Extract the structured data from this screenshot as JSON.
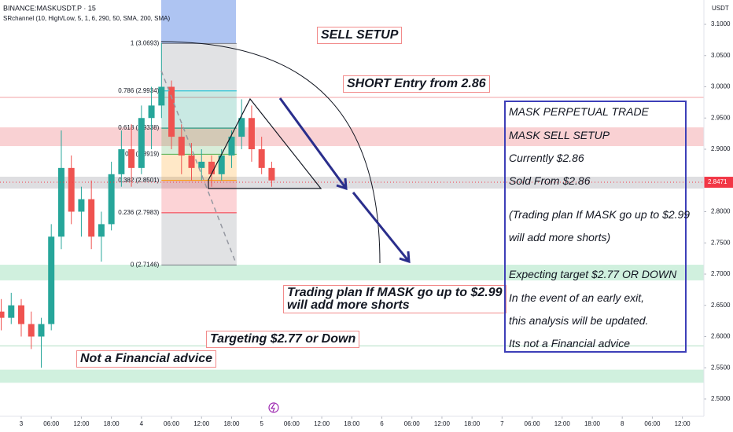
{
  "chart_data": {
    "type": "candlestick",
    "title": "BINANCE:MASKUSDT.P · 15",
    "subtitle": "SRchannel (10, High/Low, 5, 1, 6, 290, 50, SMA, 200, SMA)",
    "y_axis_label": "USDT",
    "up_color": "#26a69a",
    "down_color": "#ef5350",
    "x": [
      -4,
      -2,
      0,
      2,
      4,
      6,
      8,
      10,
      12,
      14,
      16,
      18,
      20,
      22,
      24,
      26,
      28,
      30,
      32,
      34,
      36,
      38,
      40,
      42,
      44,
      46,
      48,
      50
    ],
    "open": [
      2.64,
      2.63,
      2.65,
      2.62,
      2.6,
      2.62,
      2.76,
      2.87,
      2.8,
      2.82,
      2.76,
      2.78,
      2.86,
      2.9,
      2.87,
      2.95,
      2.97,
      3.0,
      2.92,
      2.89,
      2.87,
      2.88,
      2.86,
      2.89,
      2.92,
      2.95,
      2.9,
      2.87
    ],
    "high": [
      2.66,
      2.67,
      2.66,
      2.64,
      2.63,
      2.78,
      2.93,
      2.89,
      2.84,
      2.85,
      2.8,
      2.88,
      2.93,
      2.94,
      2.97,
      3.0,
      3.07,
      3.01,
      2.94,
      2.91,
      2.9,
      2.89,
      2.9,
      2.93,
      2.98,
      2.97,
      2.92,
      2.88
    ],
    "low": [
      2.61,
      2.62,
      2.6,
      2.58,
      2.55,
      2.61,
      2.74,
      2.78,
      2.76,
      2.74,
      2.72,
      2.77,
      2.84,
      2.84,
      2.86,
      2.9,
      2.95,
      2.9,
      2.86,
      2.85,
      2.85,
      2.84,
      2.85,
      2.87,
      2.9,
      2.88,
      2.86,
      2.84
    ],
    "close": [
      2.63,
      2.65,
      2.62,
      2.6,
      2.62,
      2.76,
      2.87,
      2.8,
      2.82,
      2.76,
      2.78,
      2.86,
      2.9,
      2.87,
      2.95,
      2.97,
      3.0,
      2.92,
      2.89,
      2.87,
      2.88,
      2.86,
      2.89,
      2.92,
      2.95,
      2.9,
      2.87,
      2.85
    ],
    "xlim": [
      -4.24,
      136.3
    ],
    "xticks": [
      {
        "value": 0,
        "label": "3"
      },
      {
        "value": 6,
        "label": "06:00"
      },
      {
        "value": 12,
        "label": "12:00"
      },
      {
        "value": 18,
        "label": "18:00"
      },
      {
        "value": 24,
        "label": "4"
      },
      {
        "value": 30,
        "label": "06:00"
      },
      {
        "value": 36,
        "label": "12:00"
      },
      {
        "value": 42,
        "label": "18:00"
      },
      {
        "value": 48,
        "label": "5"
      },
      {
        "value": 54,
        "label": "06:00"
      },
      {
        "value": 60,
        "label": "12:00"
      },
      {
        "value": 66,
        "label": "18:00"
      },
      {
        "value": 72,
        "label": "6"
      },
      {
        "value": 78,
        "label": "06:00"
      },
      {
        "value": 84,
        "label": "12:00"
      },
      {
        "value": 90,
        "label": "18:00"
      },
      {
        "value": 96,
        "label": "7"
      },
      {
        "value": 102,
        "label": "06:00"
      },
      {
        "value": 108,
        "label": "12:00"
      },
      {
        "value": 114,
        "label": "18:00"
      },
      {
        "value": 120,
        "label": "8"
      },
      {
        "value": 126,
        "label": "06:00"
      },
      {
        "value": 132,
        "label": "12:00"
      }
    ],
    "ylim": [
      2.4723,
      3.139
    ],
    "yticks": [
      {
        "value": 2.5,
        "label": "2.5000"
      },
      {
        "value": 2.55,
        "label": "2.5500"
      },
      {
        "value": 2.6,
        "label": "2.6000"
      },
      {
        "value": 2.65,
        "label": "2.6500"
      },
      {
        "value": 2.7,
        "label": "2.7000"
      },
      {
        "value": 2.75,
        "label": "2.7500"
      },
      {
        "value": 2.8,
        "label": "2.8000"
      },
      {
        "value": 2.85,
        "label": "2.8500"
      },
      {
        "value": 2.9,
        "label": "2.9000"
      },
      {
        "value": 2.95,
        "label": "2.9500"
      },
      {
        "value": 3.0,
        "label": "3.0000"
      },
      {
        "value": 3.05,
        "label": "3.0500"
      },
      {
        "value": 3.1,
        "label": "3.1000"
      }
    ],
    "last_price": 2.8471,
    "last_price_color": "#f23645",
    "sr_zones": [
      {
        "low": 2.905,
        "high": 2.935,
        "color": "#f7c5c8"
      },
      {
        "low": 2.837,
        "high": 2.856,
        "color": "#d6d6d9"
      },
      {
        "low": 2.69,
        "high": 2.715,
        "color": "#c4ecd6"
      },
      {
        "low": 2.526,
        "high": 2.547,
        "color": "#c4ecd6"
      }
    ],
    "sr_lines": [
      {
        "value": 2.983,
        "color": "#f5b5b8"
      },
      {
        "value": 2.585,
        "color": "#bfe6cf"
      }
    ],
    "fib_start": 28,
    "fib_end": 43,
    "fib_levels": [
      {
        "value": 3.0693,
        "label": "1 (3.0693)",
        "color": "#787b86"
      },
      {
        "value": 2.9934,
        "label": "0.786 (2.9934)",
        "color": "#00bcd4"
      },
      {
        "value": 2.9338,
        "label": "0.618 (2.9338)",
        "color": "#089981"
      },
      {
        "value": 2.8919,
        "label": "0.5 (2.8919)",
        "color": "#4caf50"
      },
      {
        "value": 2.8501,
        "label": "0.382 (2.8501)",
        "color": "#ff9800"
      },
      {
        "value": 2.7983,
        "label": "0.236 (2.7983)",
        "color": "#f23645"
      },
      {
        "value": 2.7146,
        "label": "0 (2.7146)",
        "color": "#787b86"
      }
    ]
  },
  "annotations": {
    "sell_setup": "SELL SETUP",
    "short_entry": "SHORT Entry from 2.86",
    "trading_plan": [
      "Trading plan If MASK go up to $2.99",
      "will add more shorts"
    ],
    "targeting": "Targeting $2.77 or Down",
    "not_advice": "Not a Financial advice",
    "box_lines": [
      "MASK PERPETUAL TRADE",
      "MASK SELL SETUP",
      "Currently $2.86",
      "Sold From $2.86",
      "(Trading plan If MASK go up to $2.99",
      "will add more shorts)",
      "Expecting target $2.77 OR DOWN",
      "In the event of an early exit,",
      "this analysis will be updated.",
      "Its not a Financial advice"
    ]
  }
}
